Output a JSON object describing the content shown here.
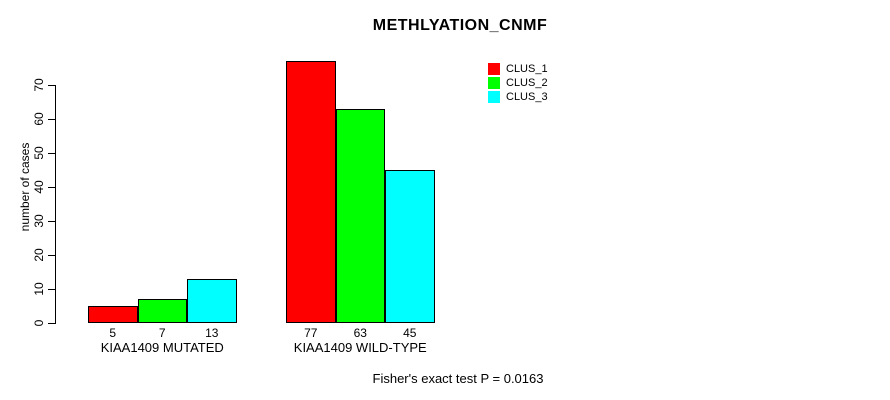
{
  "title": "METHLYATION_CNMF",
  "footer": "Fisher's exact test P = 0.0163",
  "chart_data": {
    "type": "bar",
    "title": "METHLYATION_CNMF",
    "ylabel": "number of cases",
    "xlabel": "",
    "categories": [
      "KIAA1409 MUTATED",
      "KIAA1409 WILD-TYPE"
    ],
    "series": [
      {
        "name": "CLUS_1",
        "color": "#ff0000",
        "values": [
          5,
          77
        ]
      },
      {
        "name": "CLUS_2",
        "color": "#00ff00",
        "values": [
          7,
          63
        ]
      },
      {
        "name": "CLUS_3",
        "color": "#00ffff",
        "values": [
          13,
          45
        ]
      }
    ],
    "bar_value_labels": [
      [
        "5",
        "7",
        "13"
      ],
      [
        "77",
        "63",
        "45"
      ]
    ],
    "yticks": [
      0,
      10,
      20,
      30,
      40,
      50,
      60,
      70
    ],
    "ylim": [
      0,
      77
    ],
    "grid": false,
    "legend_position": "top-right",
    "annotation": "Fisher's exact test P = 0.0163"
  }
}
